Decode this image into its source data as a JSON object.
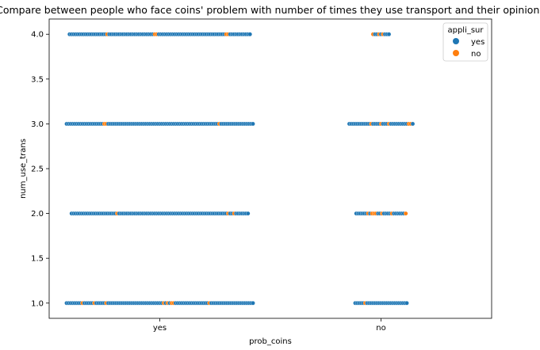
{
  "chart_data": {
    "type": "scatter",
    "subtype": "swarm",
    "title": "Compare between people who face coins' problem with number of times they use transport and their opinions",
    "xlabel": "prob_coins",
    "ylabel": "num_use_trans",
    "categories": [
      "yes",
      "no"
    ],
    "y_ticks": [
      "1.0",
      "1.5",
      "2.0",
      "2.5",
      "3.0",
      "3.5",
      "4.0"
    ],
    "ylim": [
      0.83,
      4.17
    ],
    "grid": false,
    "legend": {
      "title": "appli_sur",
      "position": "top-right",
      "entries": [
        {
          "label": "yes",
          "color": "#1f77b4"
        },
        {
          "label": "no",
          "color": "#ff7f0e"
        }
      ]
    },
    "series": [
      {
        "category": "yes",
        "y": 4.0,
        "points": [
          "yes",
          "yes",
          "yes",
          "yes",
          "yes",
          "yes",
          "yes",
          "yes",
          "yes",
          "yes",
          "yes",
          "yes",
          "yes",
          "yes",
          "yes",
          "yes",
          "yes",
          "yes",
          "yes",
          "no",
          "yes",
          "yes",
          "yes",
          "yes",
          "yes",
          "yes",
          "yes",
          "yes",
          "yes",
          "yes",
          "yes",
          "yes",
          "yes",
          "yes",
          "yes",
          "yes",
          "yes",
          "yes",
          "yes",
          "yes",
          "yes",
          "yes",
          "yes",
          "no",
          "no",
          "yes",
          "yes",
          "yes",
          "yes",
          "yes",
          "yes",
          "yes",
          "yes",
          "yes",
          "yes",
          "yes",
          "yes",
          "yes",
          "yes",
          "yes",
          "yes",
          "yes",
          "yes",
          "yes",
          "yes",
          "yes",
          "yes",
          "yes",
          "yes",
          "yes",
          "yes",
          "yes",
          "yes",
          "yes",
          "yes",
          "yes",
          "yes",
          "yes",
          "yes",
          "no",
          "no",
          "yes",
          "yes",
          "yes",
          "yes",
          "yes",
          "yes",
          "yes",
          "yes",
          "yes",
          "yes",
          "yes"
        ]
      },
      {
        "category": "yes",
        "y": 3.0,
        "points": [
          "yes",
          "yes",
          "yes",
          "yes",
          "yes",
          "yes",
          "yes",
          "yes",
          "yes",
          "yes",
          "yes",
          "yes",
          "yes",
          "yes",
          "yes",
          "yes",
          "yes",
          "yes",
          "yes",
          "no",
          "no",
          "yes",
          "yes",
          "yes",
          "yes",
          "yes",
          "yes",
          "yes",
          "yes",
          "yes",
          "yes",
          "yes",
          "yes",
          "yes",
          "yes",
          "yes",
          "yes",
          "yes",
          "yes",
          "yes",
          "yes",
          "yes",
          "yes",
          "yes",
          "yes",
          "yes",
          "yes",
          "yes",
          "yes",
          "yes",
          "yes",
          "yes",
          "yes",
          "yes",
          "yes",
          "yes",
          "yes",
          "yes",
          "yes",
          "yes",
          "yes",
          "yes",
          "yes",
          "yes",
          "yes",
          "yes",
          "yes",
          "yes",
          "yes",
          "yes",
          "yes",
          "yes",
          "yes",
          "yes",
          "yes",
          "yes",
          "yes",
          "no",
          "yes",
          "yes",
          "yes",
          "yes",
          "yes",
          "yes",
          "yes",
          "yes",
          "yes",
          "yes",
          "yes",
          "yes",
          "yes",
          "yes",
          "yes",
          "yes",
          "yes"
        ]
      },
      {
        "category": "yes",
        "y": 2.0,
        "points": [
          "yes",
          "yes",
          "yes",
          "yes",
          "yes",
          "yes",
          "yes",
          "yes",
          "yes",
          "yes",
          "yes",
          "yes",
          "yes",
          "yes",
          "yes",
          "yes",
          "yes",
          "yes",
          "yes",
          "yes",
          "yes",
          "yes",
          "yes",
          "no",
          "yes",
          "yes",
          "yes",
          "yes",
          "yes",
          "yes",
          "yes",
          "yes",
          "yes",
          "yes",
          "yes",
          "yes",
          "yes",
          "yes",
          "yes",
          "yes",
          "yes",
          "yes",
          "yes",
          "yes",
          "yes",
          "yes",
          "yes",
          "yes",
          "yes",
          "yes",
          "yes",
          "yes",
          "yes",
          "yes",
          "yes",
          "yes",
          "yes",
          "yes",
          "yes",
          "yes",
          "yes",
          "yes",
          "yes",
          "yes",
          "yes",
          "yes",
          "yes",
          "yes",
          "yes",
          "yes",
          "yes",
          "yes",
          "yes",
          "yes",
          "yes",
          "yes",
          "yes",
          "yes",
          "yes",
          "no",
          "yes",
          "yes",
          "no",
          "yes",
          "yes",
          "yes",
          "yes",
          "yes",
          "yes",
          "yes"
        ]
      },
      {
        "category": "yes",
        "y": 1.0,
        "points": [
          "yes",
          "yes",
          "yes",
          "yes",
          "yes",
          "yes",
          "yes",
          "yes",
          "no",
          "yes",
          "yes",
          "yes",
          "yes",
          "yes",
          "no",
          "yes",
          "yes",
          "yes",
          "yes",
          "yes",
          "no",
          "yes",
          "yes",
          "yes",
          "yes",
          "yes",
          "yes",
          "yes",
          "yes",
          "yes",
          "yes",
          "yes",
          "yes",
          "yes",
          "yes",
          "yes",
          "yes",
          "yes",
          "yes",
          "yes",
          "yes",
          "yes",
          "yes",
          "yes",
          "yes",
          "yes",
          "yes",
          "yes",
          "yes",
          "no",
          "yes",
          "no",
          "yes",
          "no",
          "no",
          "yes",
          "yes",
          "yes",
          "yes",
          "yes",
          "yes",
          "yes",
          "yes",
          "yes",
          "yes",
          "yes",
          "yes",
          "yes",
          "yes",
          "yes",
          "yes",
          "yes",
          "no",
          "yes",
          "yes",
          "yes",
          "yes",
          "yes",
          "yes",
          "yes",
          "yes",
          "yes",
          "yes",
          "yes",
          "yes",
          "yes",
          "yes",
          "yes",
          "yes",
          "yes",
          "yes",
          "yes",
          "yes",
          "yes",
          "yes"
        ]
      },
      {
        "category": "no",
        "y": 4.0,
        "points": [
          "no",
          "yes",
          "yes",
          "no",
          "yes",
          "no",
          "yes",
          "yes",
          "yes"
        ]
      },
      {
        "category": "no",
        "y": 3.0,
        "points": [
          "yes",
          "yes",
          "yes",
          "yes",
          "yes",
          "yes",
          "yes",
          "yes",
          "yes",
          "yes",
          "yes",
          "no",
          "yes",
          "yes",
          "yes",
          "yes",
          "no",
          "yes",
          "yes",
          "yes",
          "no",
          "yes",
          "yes",
          "yes",
          "yes",
          "yes",
          "yes",
          "yes",
          "yes",
          "yes",
          "no",
          "no",
          "yes"
        ]
      },
      {
        "category": "no",
        "y": 2.0,
        "points": [
          "yes",
          "yes",
          "yes",
          "yes",
          "yes",
          "yes",
          "no",
          "yes",
          "no",
          "no",
          "no",
          "yes",
          "yes",
          "no",
          "yes",
          "yes",
          "yes",
          "yes",
          "no",
          "yes",
          "yes",
          "yes",
          "yes",
          "yes",
          "yes",
          "no"
        ]
      },
      {
        "category": "no",
        "y": 1.0,
        "points": [
          "yes",
          "yes",
          "yes",
          "yes",
          "yes",
          "no",
          "yes",
          "yes",
          "yes",
          "yes",
          "yes",
          "yes",
          "yes",
          "yes",
          "yes",
          "yes",
          "yes",
          "yes",
          "yes",
          "yes",
          "yes",
          "yes",
          "yes",
          "yes",
          "yes",
          "yes",
          "yes"
        ]
      }
    ]
  }
}
